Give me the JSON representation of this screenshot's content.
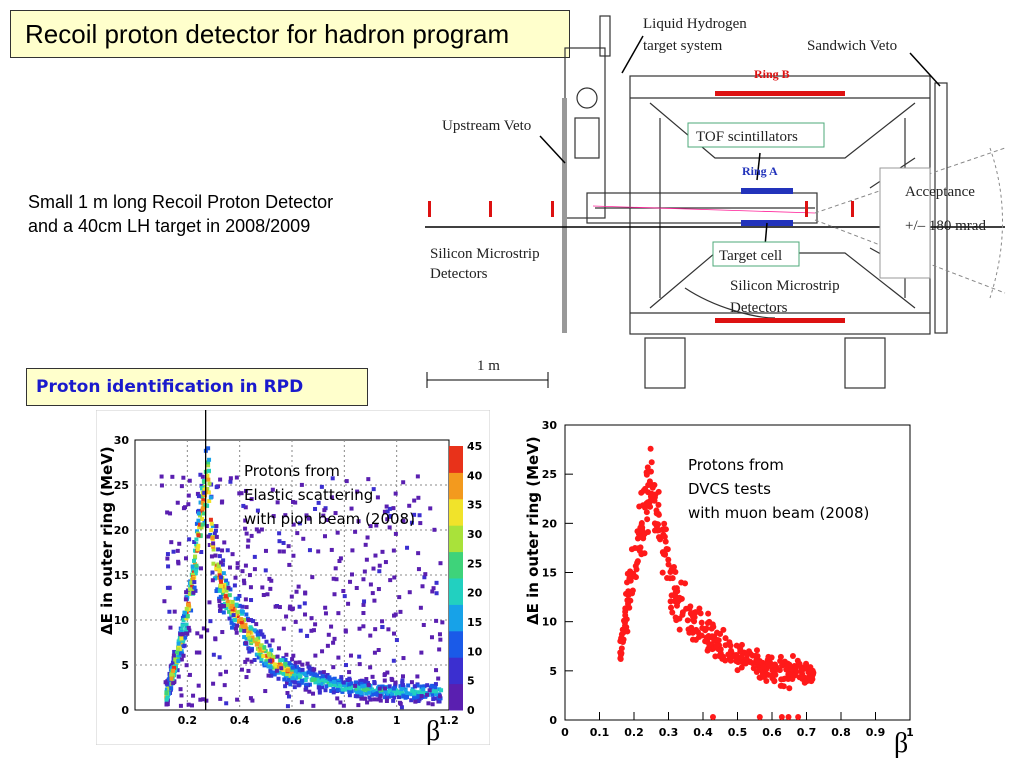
{
  "slide": {
    "title": "Recoil proton detector for hadron program",
    "subtitle_line1": "Small 1 m long Recoil Proton Detector",
    "subtitle_line2": "and a 40cm LH target  in 2008/2009",
    "pid_box": "Proton identification in RPD"
  },
  "diagram": {
    "labels": {
      "lh2_line1": "Liquid Hydrogen",
      "lh2_line2": "target system",
      "sandwich_veto": "Sandwich Veto",
      "ring_b": "Ring B",
      "upstream_veto": "Upstream Veto",
      "tof": "TOF scintillators",
      "ring_a": "Ring A",
      "acceptance": "Acceptance",
      "acceptance_value": "+/– 180 mrad",
      "target_cell": "Target cell",
      "simd_left_line1": "Silicon Microstrip",
      "simd_left_line2": "Detectors",
      "simd_right_line1": "Silicon Microstrip",
      "simd_right_line2": "Detectors",
      "scale": "1 m"
    },
    "colors": {
      "ring": "#dd1111",
      "ring_a": "#2233bb",
      "label_box": "#4ca97a"
    }
  },
  "chart_data": [
    {
      "type": "heatmap",
      "annotation": [
        "Protons from",
        "Elastic scattering",
        "with pion beam (2008)"
      ],
      "ylabel": "ΔE in outer ring (MeV)",
      "xlabel": "β",
      "xlim": [
        0,
        1.2
      ],
      "ylim": [
        0,
        30
      ],
      "x_ticks": [
        0.2,
        0.4,
        0.6,
        0.8,
        1,
        1.2
      ],
      "y_ticks": [
        0,
        5,
        10,
        15,
        20,
        25,
        30
      ],
      "cut_beta": 0.27,
      "colorbar": {
        "min": 0,
        "max": 45,
        "ticks": [
          0,
          5,
          10,
          15,
          20,
          25,
          30,
          35,
          40,
          45
        ]
      },
      "ridge": {
        "x": [
          0.12,
          0.18,
          0.22,
          0.26,
          0.28,
          0.3,
          0.35,
          0.4,
          0.5,
          0.6,
          0.8,
          1.0,
          1.15
        ],
        "y": [
          1.5,
          8,
          14,
          23,
          26,
          17,
          12.5,
          10,
          6,
          4,
          2.5,
          2,
          2
        ]
      },
      "grid": true
    },
    {
      "type": "scatter",
      "annotation": [
        "Protons from",
        "DVCS tests",
        "with muon beam (2008)"
      ],
      "ylabel": "ΔE in outer ring (MeV)",
      "xlabel": "β",
      "xlim": [
        0,
        1
      ],
      "ylim": [
        0,
        30
      ],
      "x_ticks": [
        0,
        0.1,
        0.2,
        0.3,
        0.4,
        0.5,
        0.6,
        0.7,
        0.8,
        0.9,
        1
      ],
      "y_ticks": [
        0,
        5,
        10,
        15,
        20,
        25,
        30
      ],
      "marker_color": "#ff1a1a",
      "trend": {
        "x": [
          0.16,
          0.2,
          0.25,
          0.28,
          0.32,
          0.37,
          0.42,
          0.5,
          0.6,
          0.7
        ],
        "y": [
          7,
          16,
          24,
          19,
          13,
          10,
          8.5,
          6.5,
          5,
          4.5
        ]
      },
      "grid": false
    }
  ]
}
